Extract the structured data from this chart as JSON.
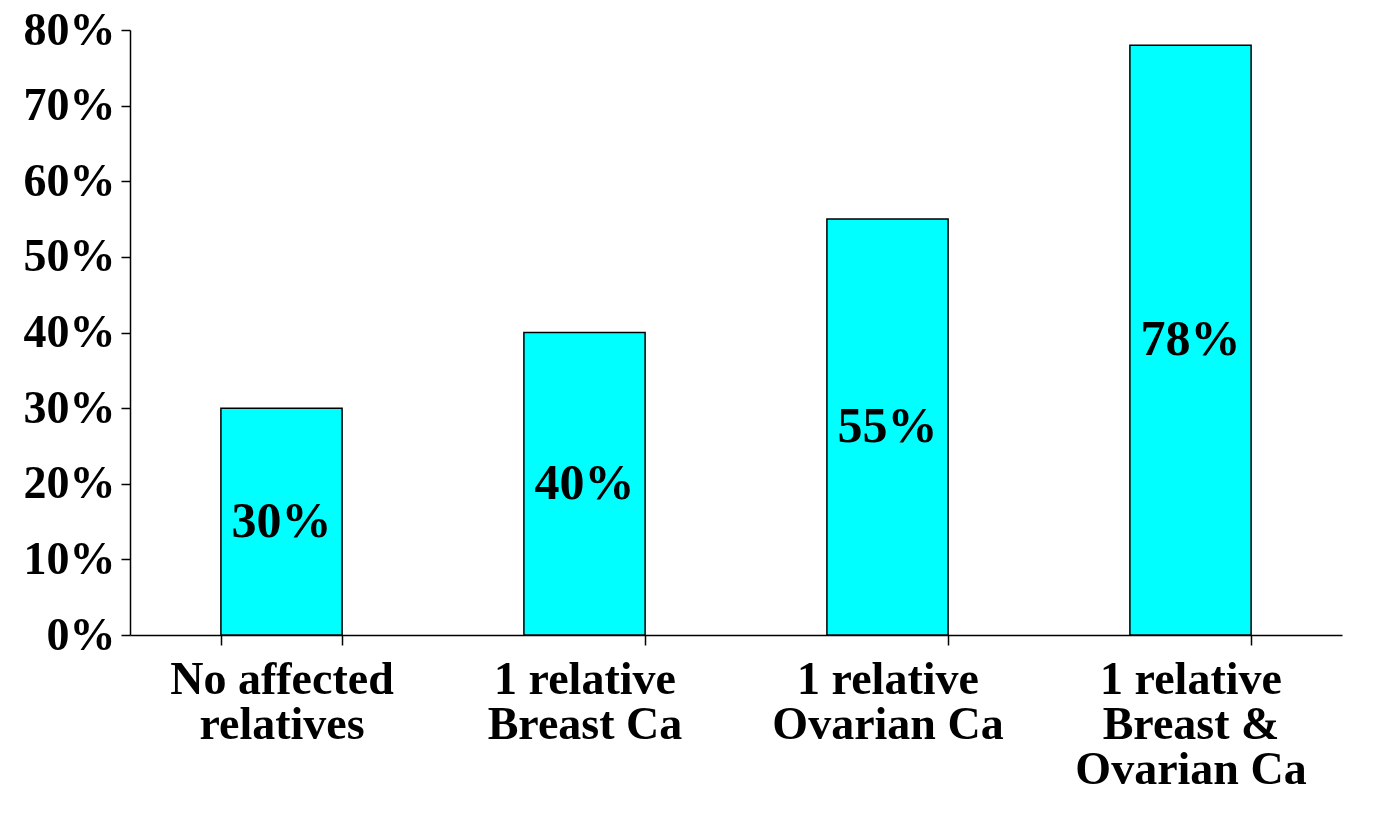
{
  "chart_data": {
    "type": "bar",
    "categories": [
      "No affected relatives",
      "1 relative Breast Ca",
      "1 relative Ovarian Ca",
      "1 relative Breast & Ovarian Ca"
    ],
    "values": [
      30,
      40,
      55,
      78
    ],
    "value_labels": [
      "30%",
      "40%",
      "55%",
      "78%"
    ],
    "color": "#00ffff",
    "ylim": [
      0,
      80
    ],
    "yticks": [
      {
        "value": 0,
        "label": "0%"
      },
      {
        "value": 10,
        "label": "10%"
      },
      {
        "value": 20,
        "label": "20%"
      },
      {
        "value": 30,
        "label": "30%"
      },
      {
        "value": 40,
        "label": "40%"
      },
      {
        "value": 50,
        "label": "50%"
      },
      {
        "value": 60,
        "label": "60%"
      },
      {
        "value": 70,
        "label": "70%"
      },
      {
        "value": 80,
        "label": "80%"
      }
    ]
  }
}
